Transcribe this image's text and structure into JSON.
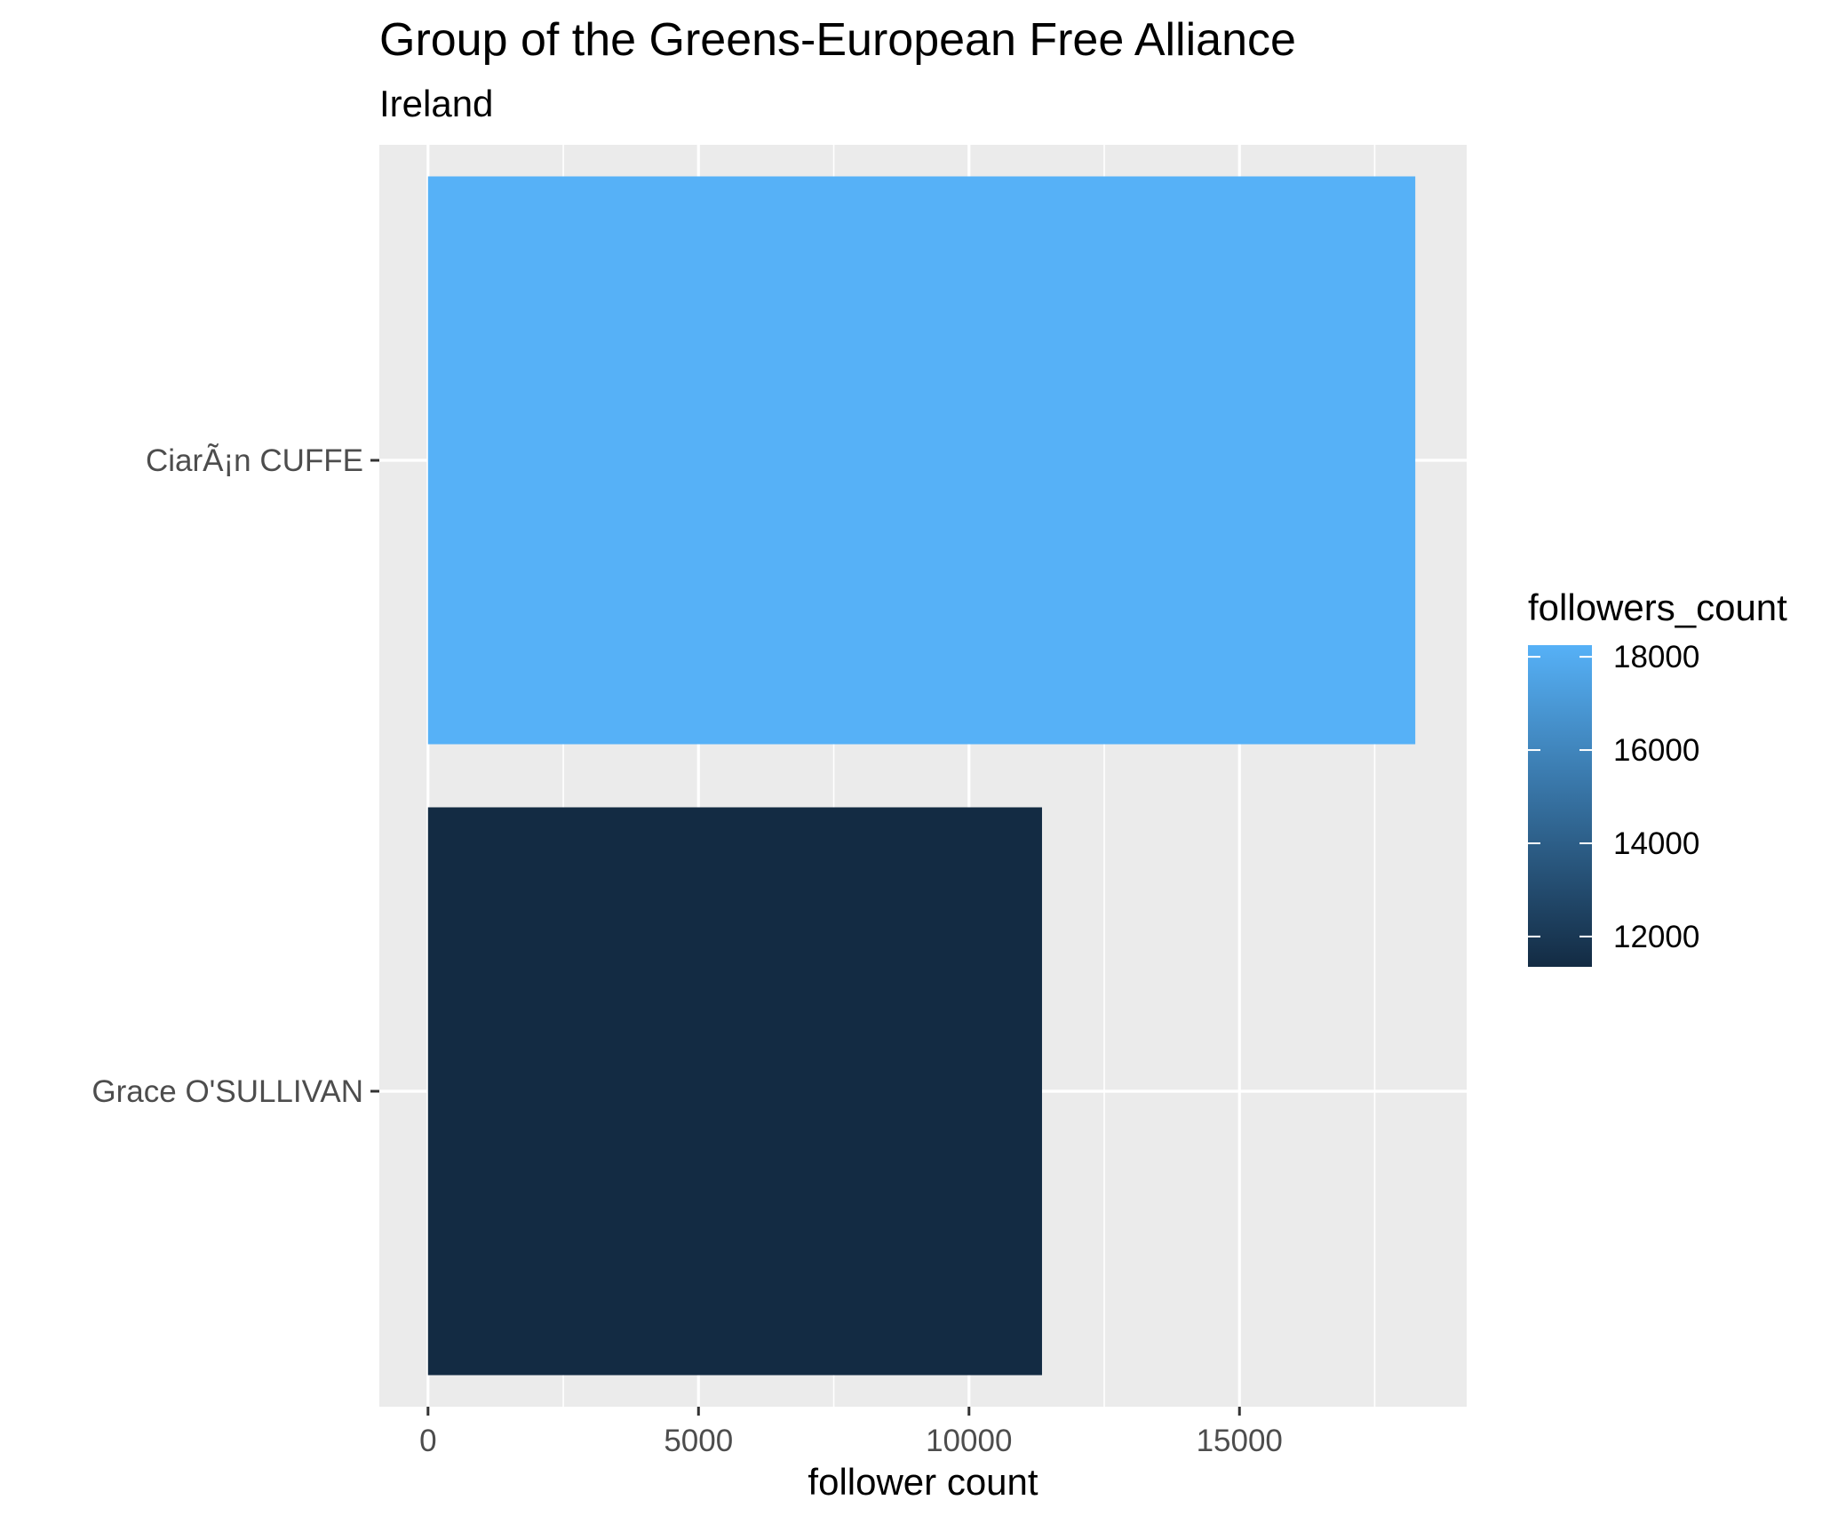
{
  "chart_data": {
    "type": "bar",
    "orientation": "horizontal",
    "title": "Group of the Greens-European Free Alliance",
    "subtitle": "Ireland",
    "xlabel": "follower count",
    "ylabel": "",
    "categories": [
      "CiarÃ¡n CUFFE",
      "Grace O'SULLIVAN"
    ],
    "values": [
      18250,
      11350
    ],
    "xlim": [
      -900,
      19200
    ],
    "xticks": [
      0,
      5000,
      10000,
      15000
    ],
    "xtick_labels": [
      "0",
      "5000",
      "10000",
      "15000"
    ],
    "grid": true,
    "legend": {
      "title": "followers_count",
      "position": "right",
      "type": "colorbar",
      "ticks": [
        12000,
        14000,
        16000,
        18000
      ],
      "tick_labels": [
        "12000",
        "14000",
        "16000",
        "18000"
      ],
      "range": [
        11350,
        18250
      ],
      "low_color": "#132B43",
      "high_color": "#56B1F7"
    },
    "colors": {
      "panel_background": "#EBEBEB",
      "gridline": "#FFFFFF",
      "low": "#132B43",
      "high": "#56B1F7"
    }
  }
}
